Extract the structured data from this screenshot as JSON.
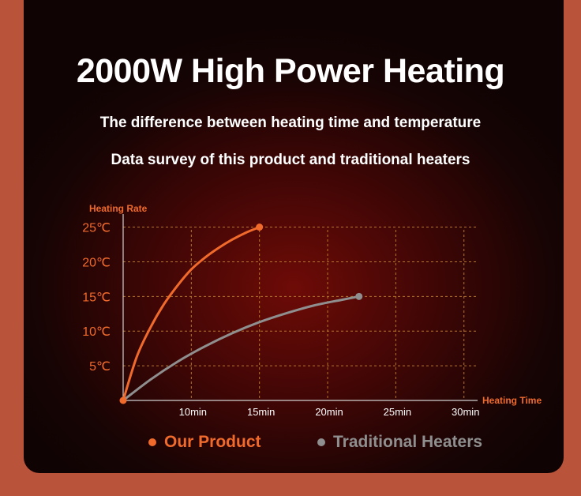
{
  "title": "2000W High Power Heating",
  "subtitles": [
    "The difference between heating time and temperature",
    "Data survey of this product and traditional heaters"
  ],
  "colors": {
    "our_product": "#f06a2c",
    "traditional": "#8f8f8f",
    "axis_label": "#f06a2c",
    "tick_label": "#f06a2c",
    "grid": "#b5762d"
  },
  "chart_data": {
    "type": "line",
    "ylabel": "Heating Rate",
    "xlabel": "Heating Time",
    "x_ticks": [
      "10min",
      "15min",
      "20min",
      "25min",
      "30min"
    ],
    "x_tick_values": [
      10,
      15,
      20,
      25,
      30
    ],
    "y_ticks": [
      "5℃",
      "10℃",
      "15℃",
      "20℃",
      "25℃"
    ],
    "y_tick_values": [
      5,
      10,
      15,
      20,
      25
    ],
    "xlim": [
      5,
      31
    ],
    "ylim": [
      0,
      27
    ],
    "grid": true,
    "legend_position": "bottom",
    "series": [
      {
        "name": "Our Product",
        "color": "#f06a2c",
        "x": [
          5,
          6,
          7,
          8,
          9,
          10,
          11,
          12,
          13,
          14,
          15
        ],
        "y": [
          0,
          6.3,
          10.5,
          13.9,
          16.6,
          18.9,
          20.6,
          22.0,
          23.2,
          24.2,
          25
        ]
      },
      {
        "name": "Traditional Heaters",
        "color": "#8f8f8f",
        "x": [
          5,
          7,
          9,
          11,
          13,
          15,
          17,
          19,
          21,
          22.3
        ],
        "y": [
          0,
          3.0,
          5.6,
          7.8,
          9.7,
          11.3,
          12.6,
          13.7,
          14.5,
          15
        ]
      }
    ]
  }
}
